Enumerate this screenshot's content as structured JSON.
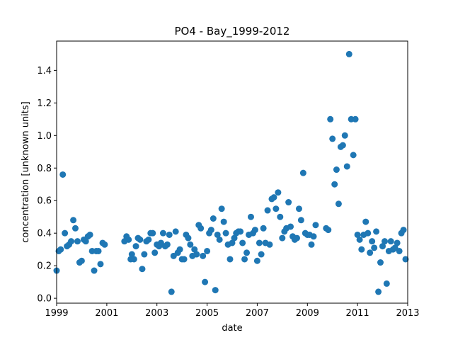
{
  "chart_data": {
    "type": "scatter",
    "title": "PO4 - Bay_1999-2012",
    "xlabel": "date",
    "ylabel": "concentration [unknown units]",
    "xlim": [
      "1999-01-01",
      "2013-01-01"
    ],
    "ylim": [
      -0.03,
      1.58
    ],
    "x_ticks": [
      "1999",
      "2001",
      "2003",
      "2005",
      "2007",
      "2009",
      "2011",
      "2013"
    ],
    "y_ticks": [
      "0.0",
      "0.2",
      "0.4",
      "0.6",
      "0.8",
      "1.0",
      "1.2",
      "1.4"
    ],
    "grid": false,
    "marker_color": "#1f77b4",
    "series": [
      {
        "x": [
          "1999-01-01",
          "1999-02-01",
          "1999-03-01",
          "1999-04-01",
          "1999-05-01",
          "1999-06-01",
          "1999-07-01",
          "1999-08-01",
          "1999-09-01",
          "1999-10-01",
          "1999-11-01",
          "1999-12-01",
          "2000-01-01",
          "2000-02-01",
          "2000-03-01",
          "2000-04-01",
          "2000-05-01",
          "2000-06-01",
          "2000-07-01",
          "2000-08-01",
          "2000-09-01",
          "2000-10-01",
          "2000-11-01",
          "2000-12-01",
          "2001-09-15",
          "2001-10-15",
          "2001-11-15",
          "2001-12-15",
          "2002-01-01",
          "2002-02-01",
          "2002-03-01",
          "2002-04-01",
          "2002-05-01",
          "2002-06-01",
          "2002-07-01",
          "2002-08-01",
          "2002-09-01",
          "2002-10-01",
          "2002-11-01",
          "2002-12-01",
          "2003-01-01",
          "2003-02-01",
          "2003-03-01",
          "2003-04-01",
          "2003-05-01",
          "2003-06-01",
          "2003-07-01",
          "2003-08-01",
          "2003-09-01",
          "2003-10-01",
          "2003-11-01",
          "2003-12-01",
          "2004-01-01",
          "2004-02-01",
          "2004-03-01",
          "2004-04-01",
          "2004-05-01",
          "2004-06-01",
          "2004-07-01",
          "2004-08-01",
          "2004-09-01",
          "2004-10-01",
          "2004-11-01",
          "2004-12-01",
          "2005-01-01",
          "2005-02-01",
          "2005-03-01",
          "2005-04-01",
          "2005-05-01",
          "2005-06-01",
          "2005-07-01",
          "2005-08-01",
          "2005-09-01",
          "2005-10-01",
          "2005-11-01",
          "2005-12-01",
          "2006-01-01",
          "2006-02-01",
          "2006-03-01",
          "2006-04-01",
          "2006-05-01",
          "2006-06-01",
          "2006-07-01",
          "2006-08-01",
          "2006-09-01",
          "2006-10-01",
          "2006-11-01",
          "2006-12-01",
          "2007-01-01",
          "2007-02-01",
          "2007-03-01",
          "2007-04-01",
          "2007-05-01",
          "2007-06-01",
          "2007-07-01",
          "2007-08-01",
          "2007-09-01",
          "2007-10-01",
          "2007-11-01",
          "2007-12-01",
          "2008-01-01",
          "2008-02-01",
          "2008-03-01",
          "2008-04-01",
          "2008-05-01",
          "2008-06-01",
          "2008-07-01",
          "2008-08-01",
          "2008-09-01",
          "2008-10-01",
          "2008-11-01",
          "2008-12-01",
          "2009-01-01",
          "2009-02-01",
          "2009-03-01",
          "2009-04-01",
          "2009-05-01",
          "2009-10-01",
          "2009-11-01",
          "2009-12-01",
          "2010-01-01",
          "2010-02-01",
          "2010-03-01",
          "2010-04-01",
          "2010-05-01",
          "2010-06-01",
          "2010-07-01",
          "2010-08-01",
          "2010-09-01",
          "2010-10-01",
          "2010-11-01",
          "2010-12-01",
          "2011-01-01",
          "2011-02-01",
          "2011-03-01",
          "2011-04-01",
          "2011-05-01",
          "2011-06-01",
          "2011-07-01",
          "2011-08-01",
          "2011-09-01",
          "2011-10-01",
          "2011-11-01",
          "2011-12-01",
          "2012-01-01",
          "2012-02-01",
          "2012-03-01",
          "2012-04-01",
          "2012-05-01",
          "2012-06-01",
          "2012-07-01",
          "2012-08-01",
          "2012-09-01",
          "2012-10-01",
          "2012-11-01",
          "2012-12-01"
        ],
        "y": [
          0.17,
          0.29,
          0.3,
          0.76,
          0.4,
          0.32,
          0.33,
          0.35,
          0.48,
          0.43,
          0.35,
          0.22,
          0.23,
          0.36,
          0.35,
          0.38,
          0.39,
          0.29,
          0.17,
          0.29,
          0.29,
          0.21,
          0.34,
          0.33,
          0.35,
          0.38,
          0.36,
          0.24,
          0.27,
          0.24,
          0.32,
          0.37,
          0.36,
          0.18,
          0.27,
          0.35,
          0.36,
          0.4,
          0.4,
          0.28,
          0.33,
          0.32,
          0.34,
          0.4,
          0.32,
          0.33,
          0.39,
          0.04,
          0.26,
          0.41,
          0.28,
          0.3,
          0.24,
          0.24,
          0.39,
          0.37,
          0.33,
          0.26,
          0.3,
          0.27,
          0.45,
          0.43,
          0.26,
          0.1,
          0.29,
          0.4,
          0.42,
          0.49,
          0.05,
          0.39,
          0.36,
          0.55,
          0.47,
          0.4,
          0.33,
          0.24,
          0.34,
          0.37,
          0.4,
          0.41,
          0.41,
          0.34,
          0.24,
          0.28,
          0.39,
          0.5,
          0.4,
          0.42,
          0.23,
          0.34,
          0.27,
          0.43,
          0.34,
          0.54,
          0.33,
          0.61,
          0.62,
          0.55,
          0.65,
          0.5,
          0.37,
          0.41,
          0.43,
          0.59,
          0.44,
          0.38,
          0.36,
          0.37,
          0.55,
          0.48,
          0.77,
          0.4,
          0.39,
          0.39,
          0.33,
          0.38,
          0.45,
          0.43,
          0.42,
          1.1,
          0.98,
          0.7,
          0.79,
          0.58,
          0.93,
          0.94,
          1.0,
          0.81,
          1.5,
          1.1,
          0.88,
          1.1,
          0.39,
          0.36,
          0.3,
          0.39,
          0.47,
          0.4,
          0.28,
          0.35,
          0.31,
          0.41,
          0.04,
          0.22,
          0.32,
          0.35,
          0.09,
          0.29,
          0.35,
          0.3,
          0.31,
          0.34,
          0.29,
          0.4,
          0.42,
          0.24
        ]
      }
    ]
  }
}
